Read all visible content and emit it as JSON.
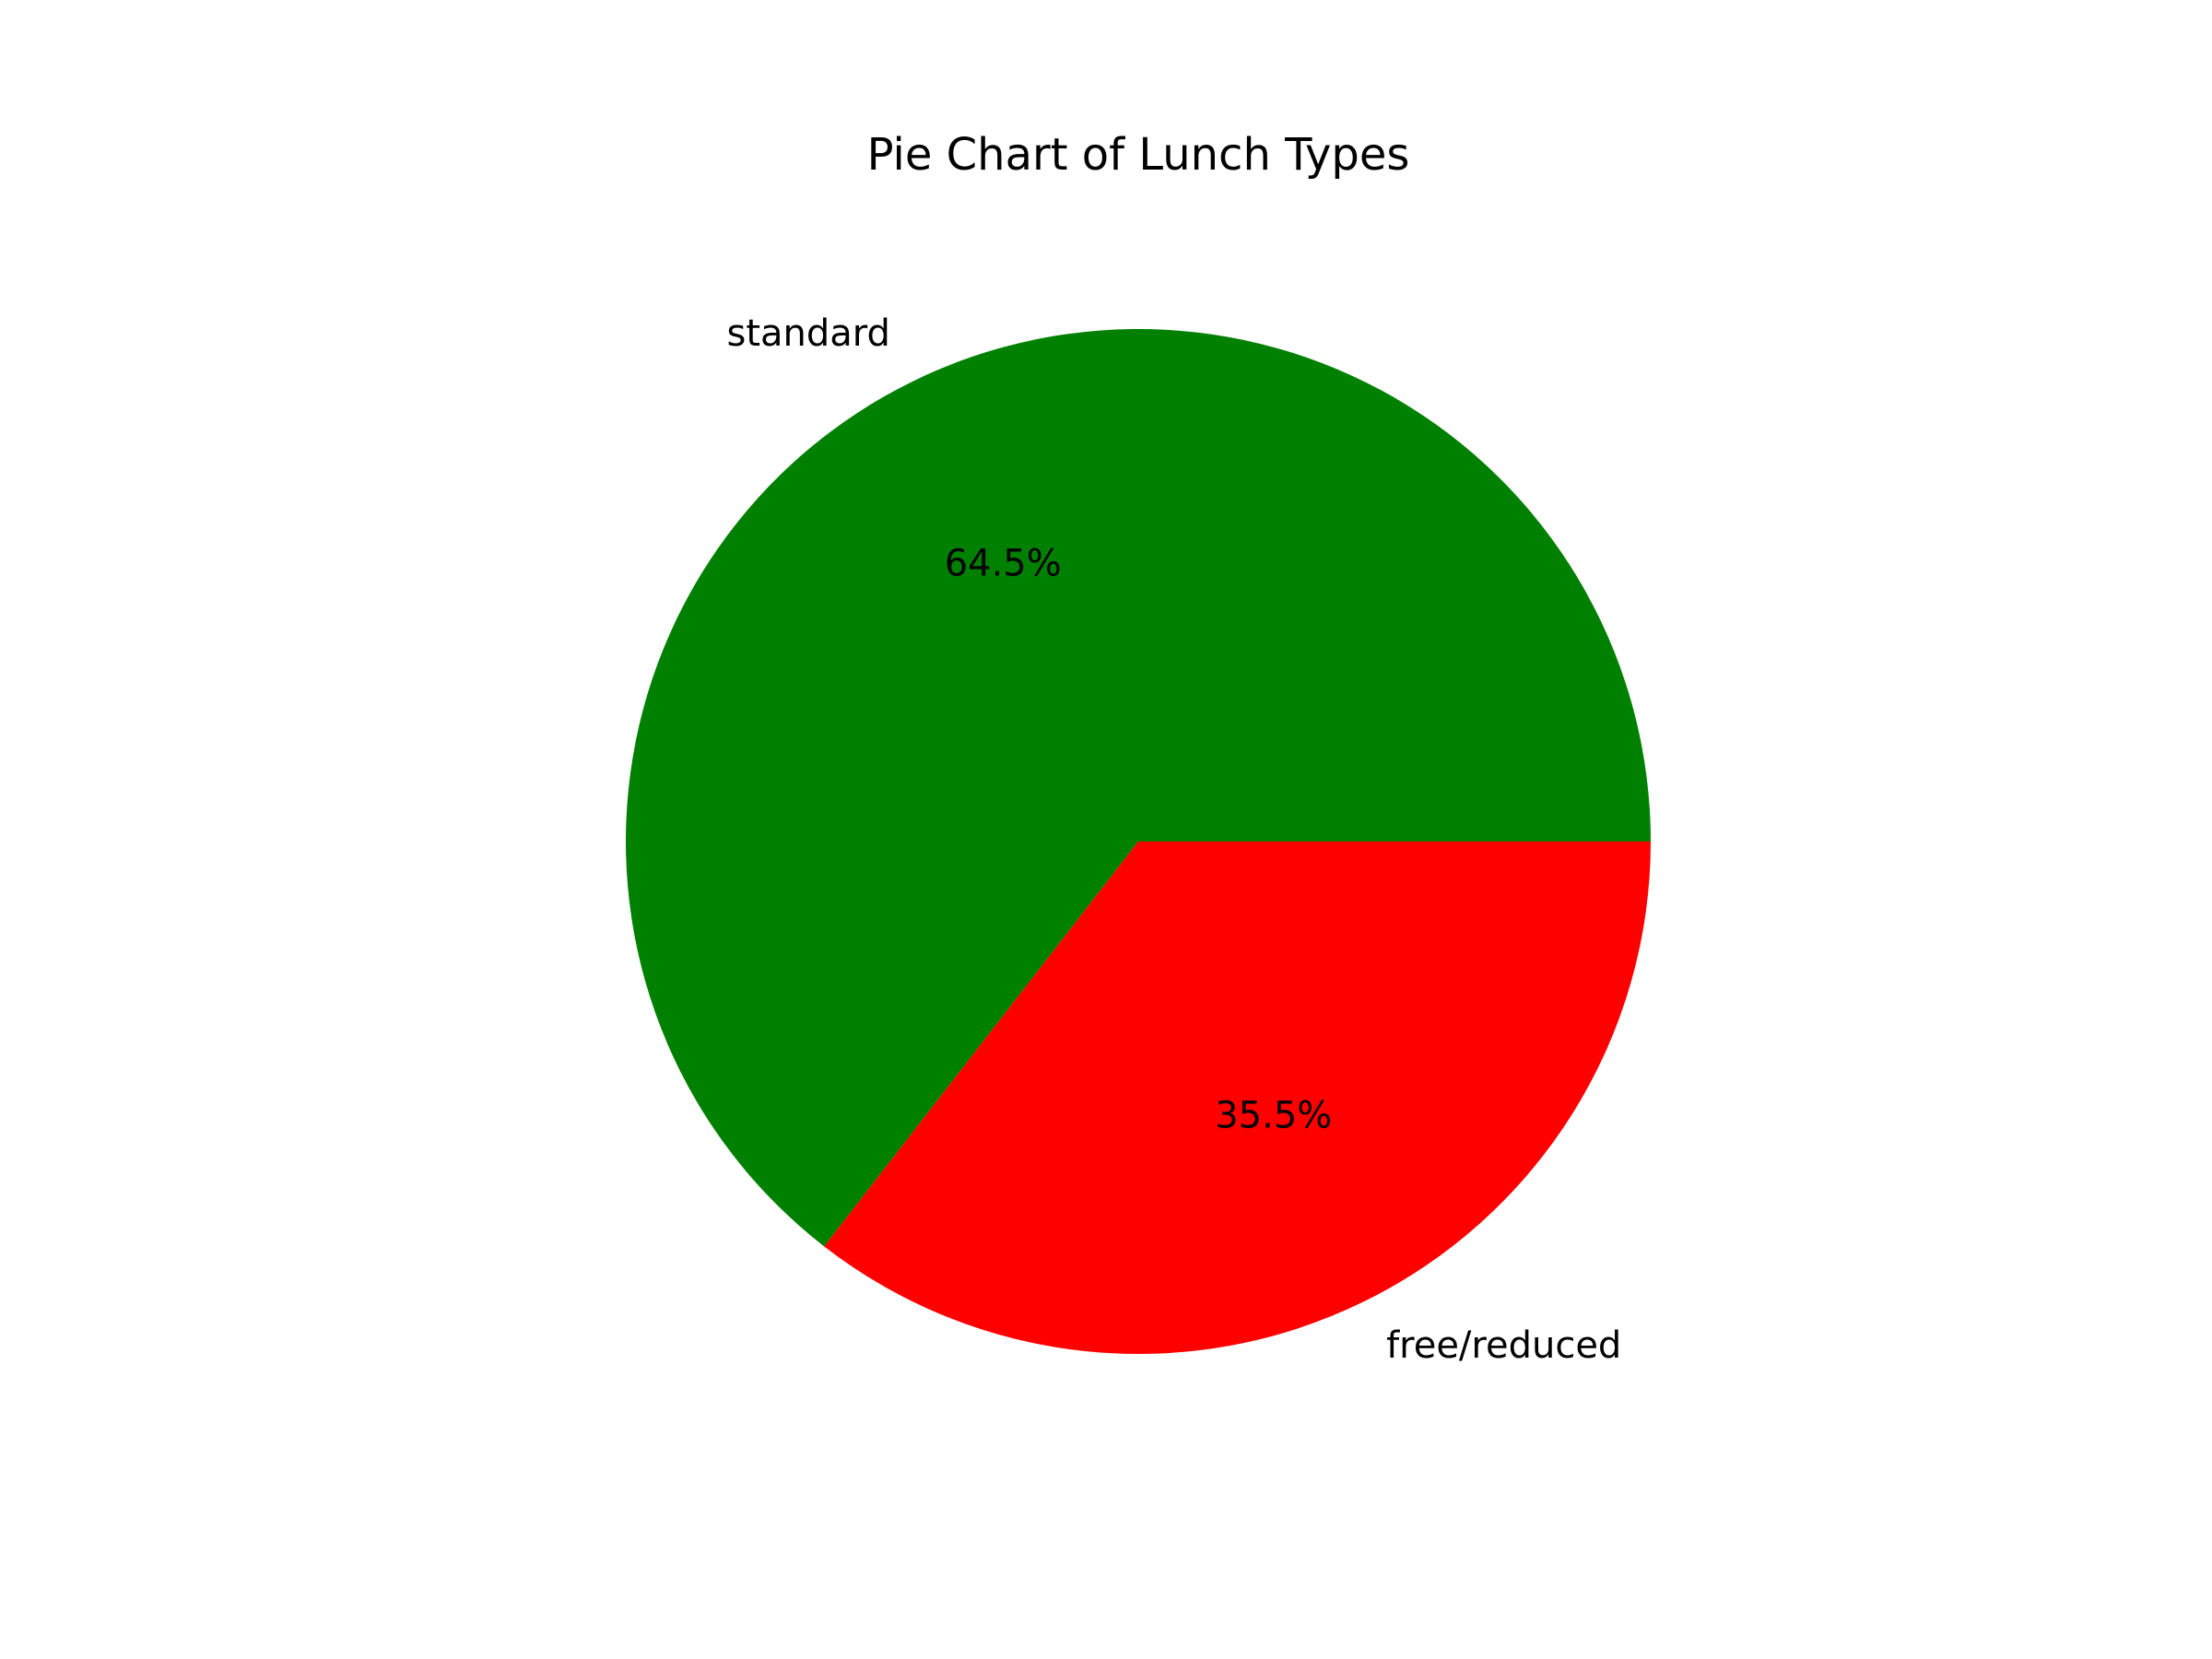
{
  "chart_data": {
    "type": "pie",
    "title": "Pie Chart of Lunch Types",
    "start_angle": 0,
    "direction": "counterclockwise",
    "slices": [
      {
        "label": "standard",
        "value": 64.5,
        "pct_label": "64.5%",
        "color": "#008000"
      },
      {
        "label": "free/reduced",
        "value": 35.5,
        "pct_label": "35.5%",
        "color": "#ff0000"
      }
    ]
  }
}
